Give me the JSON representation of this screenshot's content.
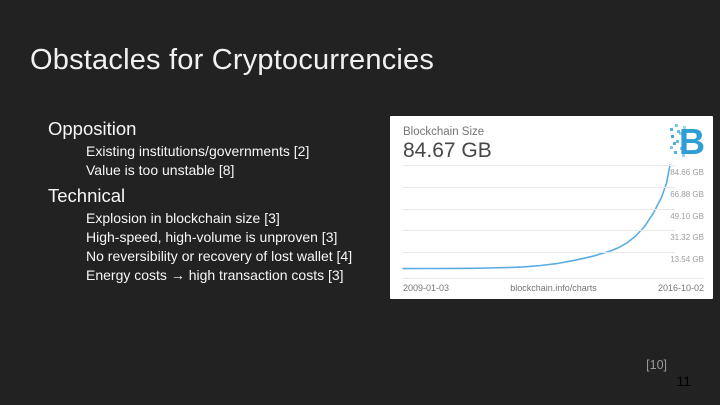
{
  "slide": {
    "title": "Obstacles for Cryptocurrencies",
    "bullets": [
      {
        "level": 1,
        "text": "Opposition"
      },
      {
        "level": 2,
        "text": "Existing institutions/governments [2]"
      },
      {
        "level": 2,
        "text": "Value is too unstable [8]"
      },
      {
        "level": 1,
        "text": "Technical"
      },
      {
        "level": 2,
        "text": "Explosion in blockchain size [3]"
      },
      {
        "level": 2,
        "text": "High-speed, high-volume is unproven [3]"
      },
      {
        "level": 2,
        "text": "No reversibility or recovery of lost wallet [4]"
      },
      {
        "level": 2,
        "text": "Energy costs → high transaction costs [3]"
      }
    ],
    "citation": "[10]",
    "page_number": "11"
  },
  "chart_card": {
    "title": "Blockchain Size",
    "current_value": "84.67 GB",
    "source": "blockchain.info/charts",
    "x_start": "2009-01-03",
    "x_end": "2016-10-02",
    "logo_icon": "blockchain-info-pixelated-b",
    "chart_data": {
      "type": "line",
      "title": "Blockchain Size",
      "ylabel": "GB",
      "x_range": [
        "2009-01-03",
        "2016-10-02"
      ],
      "gridline_labels": [
        "84.66 GB",
        "66.88 GB",
        "49.10 GB",
        "31.32 GB",
        "13.54 GB"
      ],
      "gridline_values": [
        84.66,
        66.88,
        49.1,
        31.32,
        13.54
      ],
      "ylim": [
        0,
        88
      ],
      "grid": true,
      "legend": false,
      "points": [
        {
          "year": 2009.0,
          "gb": 0.0
        },
        {
          "year": 2009.5,
          "gb": 0.02
        },
        {
          "year": 2010.0,
          "gb": 0.06
        },
        {
          "year": 2010.5,
          "gb": 0.12
        },
        {
          "year": 2011.0,
          "gb": 0.25
        },
        {
          "year": 2011.5,
          "gb": 0.45
        },
        {
          "year": 2012.0,
          "gb": 0.8
        },
        {
          "year": 2012.5,
          "gb": 1.4
        },
        {
          "year": 2013.0,
          "gb": 2.5
        },
        {
          "year": 2013.5,
          "gb": 4.2
        },
        {
          "year": 2014.0,
          "gb": 6.8
        },
        {
          "year": 2014.5,
          "gb": 10.0
        },
        {
          "year": 2015.0,
          "gb": 14.2
        },
        {
          "year": 2015.25,
          "gb": 17.0
        },
        {
          "year": 2015.5,
          "gb": 21.0
        },
        {
          "year": 2015.75,
          "gb": 26.5
        },
        {
          "year": 2016.0,
          "gb": 34.0
        },
        {
          "year": 2016.25,
          "gb": 44.5
        },
        {
          "year": 2016.5,
          "gb": 58.0
        },
        {
          "year": 2016.65,
          "gb": 70.0
        },
        {
          "year": 2016.75,
          "gb": 84.67
        }
      ]
    }
  },
  "colors": {
    "background": "#222222",
    "title_text": "#f1f1f1",
    "body_text": "#f7f7f7",
    "citation_text": "#999999",
    "page_number_text": "#000000",
    "card_background": "#ffffff",
    "card_title_text": "#757575",
    "card_value_text": "#474747",
    "grid_label_text": "#9e9e9e",
    "axis_label_text": "#757575",
    "gridline_color": "#e9e9e9",
    "curve_color": "#5aade0",
    "logo_color": "#2e9ed7"
  }
}
